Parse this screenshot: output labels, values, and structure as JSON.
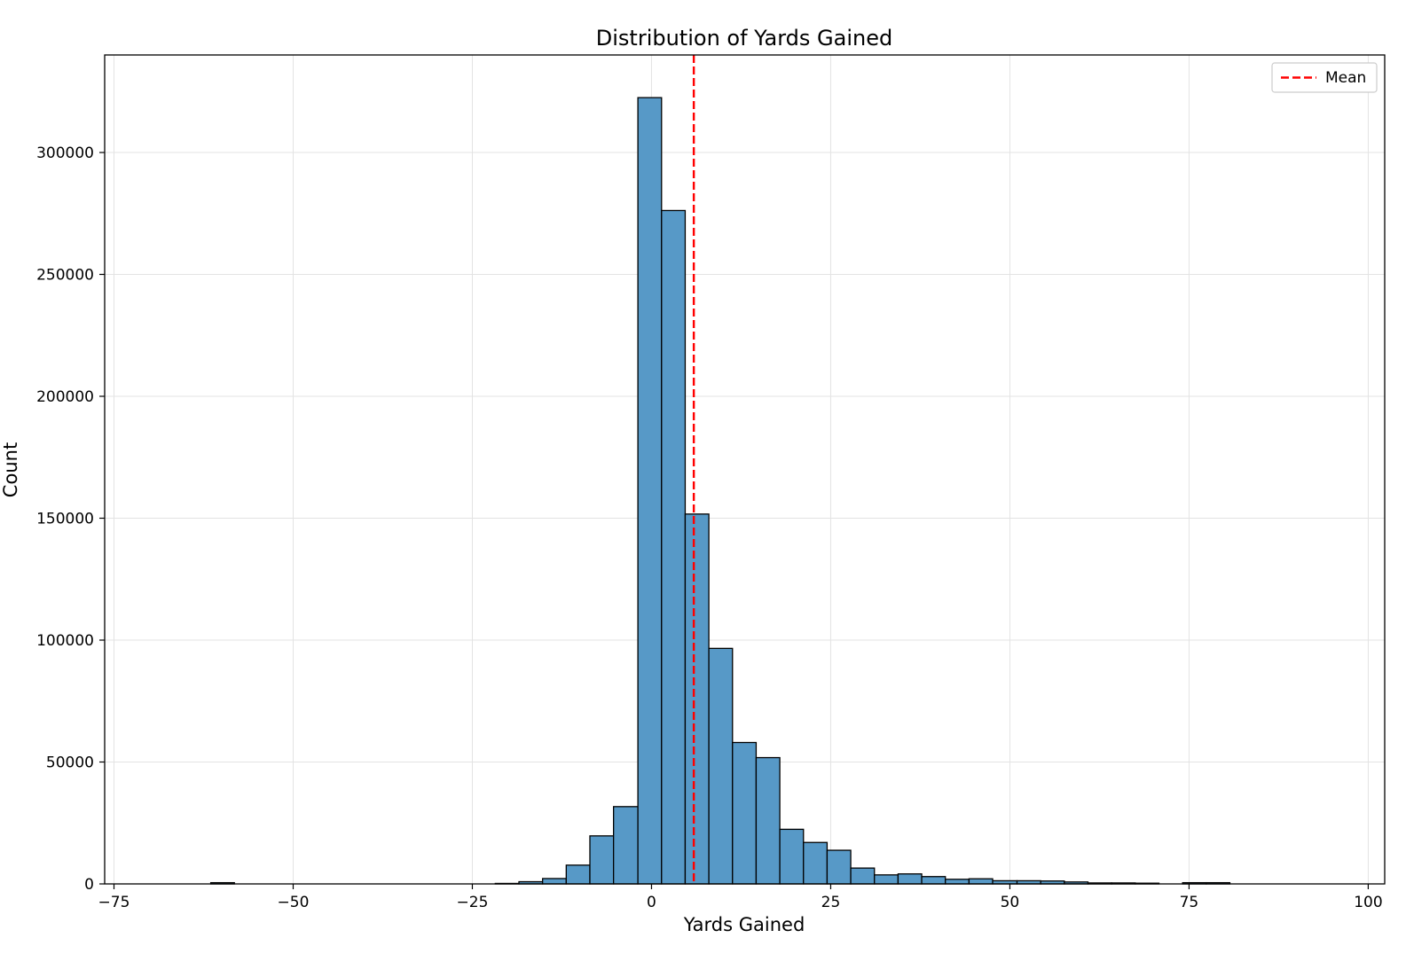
{
  "chart_data": {
    "type": "bar",
    "title": "Distribution of Yards Gained",
    "xlabel": "Yards Gained",
    "ylabel": "Count",
    "xlim": [
      -76.3,
      102.3
    ],
    "ylim": [
      0,
      340000
    ],
    "xticks": [
      -75,
      -50,
      -25,
      0,
      25,
      50,
      75,
      100
    ],
    "yticks": [
      0,
      50000,
      100000,
      150000,
      200000,
      250000,
      300000
    ],
    "xtick_labels": [
      "−75",
      "−50",
      "−25",
      "0",
      "25",
      "50",
      "75",
      "100"
    ],
    "ytick_labels": [
      "0",
      "50000",
      "100000",
      "150000",
      "200000",
      "250000",
      "300000"
    ],
    "grid": true,
    "bar_color": "#5799c7",
    "edge_color": "#000000",
    "bin_edges": [
      -68.1,
      -64.8,
      -61.5,
      -58.2,
      -54.9,
      -51.6,
      -48.2,
      -44.9,
      -41.6,
      -38.3,
      -35.0,
      -31.7,
      -28.4,
      -25.1,
      -21.8,
      -18.5,
      -15.2,
      -11.9,
      -8.6,
      -5.3,
      -1.9,
      1.4,
      4.7,
      8.0,
      11.3,
      14.6,
      17.9,
      21.2,
      24.5,
      27.8,
      31.1,
      34.4,
      37.7,
      41.0,
      44.3,
      47.6,
      51.0,
      54.3,
      57.6,
      60.9,
      64.2,
      67.5,
      70.8,
      74.1,
      77.4,
      80.7,
      84.0,
      87.3,
      90.6,
      93.9,
      97.2,
      100.5
    ],
    "counts": [
      0,
      0,
      500,
      0,
      0,
      0,
      0,
      0,
      0,
      0,
      0,
      0,
      0,
      0,
      200,
      900,
      2200,
      7700,
      19700,
      31700,
      322500,
      276200,
      151700,
      96600,
      58000,
      51800,
      22400,
      17000,
      13800,
      6500,
      3700,
      4100,
      3000,
      1900,
      2100,
      1300,
      1300,
      1200,
      800,
      400,
      400,
      300,
      0,
      500,
      500,
      0,
      0,
      0,
      0,
      0,
      0
    ],
    "mean_line": {
      "x": 5.9,
      "label": "Mean",
      "color": "#ff0000",
      "style": "dashed"
    },
    "legend": {
      "entries": [
        "Mean"
      ],
      "position": "top-right"
    }
  }
}
